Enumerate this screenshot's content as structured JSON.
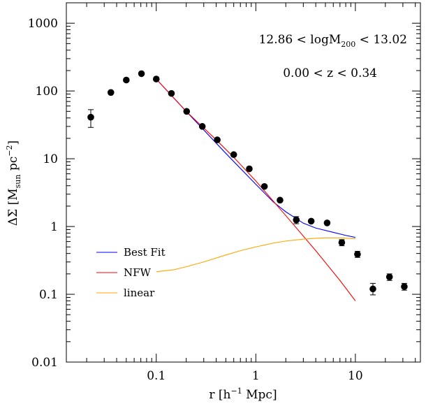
{
  "chart_data": {
    "type": "scatter",
    "title": "",
    "xlabel": {
      "main": "r  [h",
      "sup": "−1",
      "tail": " Mpc]"
    },
    "ylabel": {
      "main": "ΔΣ  [M",
      "sub": "sun",
      "mid": "  pc",
      "sup": "−2",
      "tail": "]"
    },
    "x_scale": "log",
    "y_scale": "log",
    "xlim": [
      0.0125,
      45
    ],
    "ylim": [
      0.01,
      2000
    ],
    "x_ticks": [
      {
        "value": 0.1,
        "label": "0.1"
      },
      {
        "value": 1,
        "label": "1"
      },
      {
        "value": 10,
        "label": "10"
      }
    ],
    "y_ticks": [
      {
        "value": 0.01,
        "label": "0.01"
      },
      {
        "value": 0.1,
        "label": "0.1"
      },
      {
        "value": 1,
        "label": "1"
      },
      {
        "value": 10,
        "label": "10"
      },
      {
        "value": 100,
        "label": "100"
      },
      {
        "value": 1000,
        "label": "1000"
      }
    ],
    "annotations": [
      {
        "id": "mass-range",
        "main": "12.86  <  logM",
        "sub": "200",
        "tail": "  <  13.02"
      },
      {
        "id": "z-range",
        "main": "0.00  <  z  <  0.34"
      }
    ],
    "legend": {
      "placement": "lower-left",
      "items": [
        {
          "label": "Best Fit",
          "color": "#0000ff"
        },
        {
          "label": "NFW",
          "color": "#ff0000"
        },
        {
          "label": "linear",
          "color": "#ffa500"
        }
      ]
    },
    "points": {
      "color": "#000000",
      "x": [
        0.022,
        0.035,
        0.05,
        0.071,
        0.1,
        0.142,
        0.202,
        0.29,
        0.41,
        0.6,
        0.86,
        1.22,
        1.75,
        2.55,
        3.6,
        5.2,
        7.3,
        10.5,
        15.0,
        22.0,
        31.0
      ],
      "y": [
        41,
        95,
        145,
        180,
        150,
        92,
        50,
        30,
        19,
        11.5,
        7.1,
        3.9,
        2.45,
        1.25,
        1.2,
        1.13,
        0.58,
        0.39,
        0.12,
        0.18,
        0.13
      ],
      "yerr_low": [
        29,
        89,
        138,
        172,
        143,
        88,
        47.5,
        28.5,
        18,
        10.9,
        6.7,
        3.6,
        2.25,
        1.1,
        1.1,
        1.03,
        0.52,
        0.35,
        0.098,
        0.16,
        0.115
      ],
      "yerr_high": [
        53,
        101,
        152,
        188,
        157,
        96,
        52.5,
        31.5,
        20,
        12.1,
        7.5,
        4.2,
        2.65,
        1.4,
        1.3,
        1.23,
        0.64,
        0.43,
        0.145,
        0.2,
        0.145
      ]
    },
    "series": [
      {
        "name": "Best Fit",
        "color": "#0000ff",
        "x": [
          0.1,
          0.2,
          0.5,
          1.0,
          1.5,
          2.0,
          3.0,
          4.0,
          6.0,
          8.0,
          10.0
        ],
        "y": [
          150,
          50,
          12,
          4.2,
          2.3,
          1.65,
          1.12,
          0.95,
          0.82,
          0.74,
          0.69
        ]
      },
      {
        "name": "NFW",
        "color": "#ff0000",
        "x": [
          0.1,
          0.2,
          0.4,
          0.6,
          1.0,
          2.0,
          4.0,
          7.0,
          10.0
        ],
        "y": [
          150,
          50,
          19,
          10.5,
          4.7,
          1.45,
          0.44,
          0.16,
          0.08
        ]
      },
      {
        "name": "linear",
        "color": "#ffa500",
        "x": [
          0.1,
          0.15,
          0.2,
          0.3,
          0.5,
          0.7,
          1.0,
          1.5,
          2.0,
          3.0,
          4.0,
          5.0,
          7.0,
          10.0
        ],
        "y": [
          0.215,
          0.23,
          0.255,
          0.3,
          0.38,
          0.44,
          0.5,
          0.57,
          0.61,
          0.65,
          0.67,
          0.68,
          0.68,
          0.66
        ]
      }
    ]
  }
}
